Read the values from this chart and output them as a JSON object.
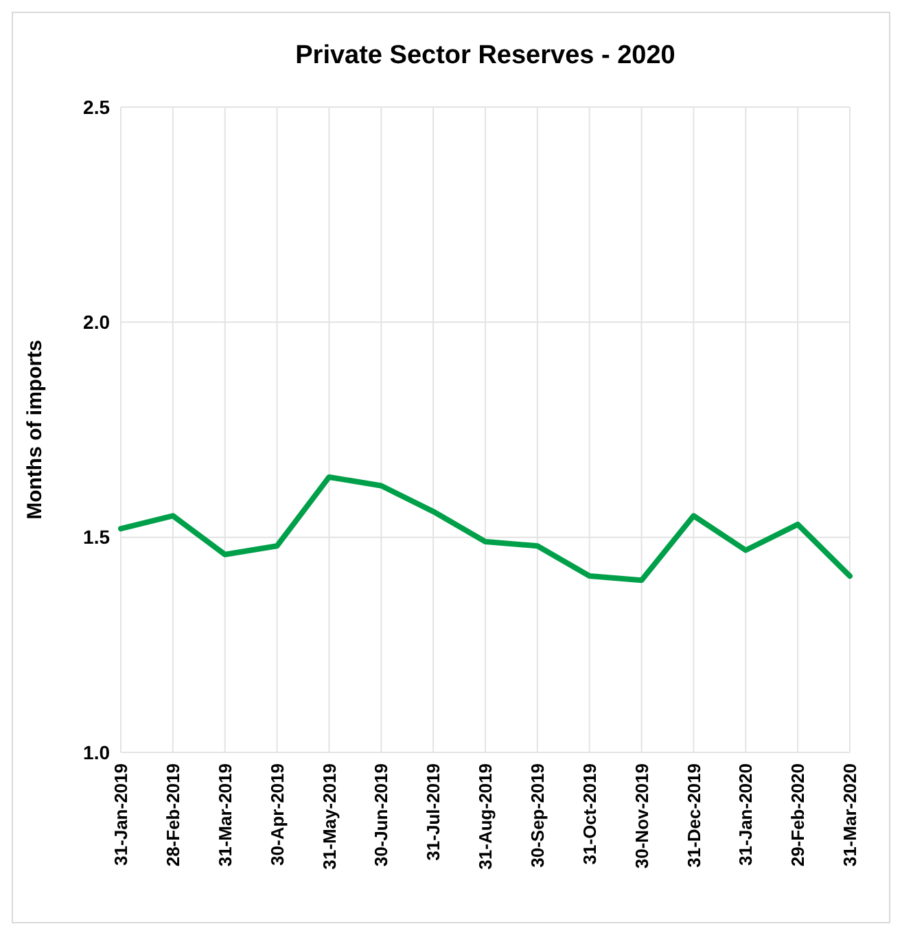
{
  "chart_data": {
    "type": "line",
    "title": "Private Sector Reserves - 2020",
    "ylabel": "Months of imports",
    "categories": [
      "31-Jan-2019",
      "28-Feb-2019",
      "31-Mar-2019",
      "30-Apr-2019",
      "31-May-2019",
      "30-Jun-2019",
      "31-Jul-2019",
      "31-Aug-2019",
      "30-Sep-2019",
      "31-Oct-2019",
      "30-Nov-2019",
      "31-Dec-2019",
      "31-Jan-2020",
      "29-Feb-2020",
      "31-Mar-2020"
    ],
    "series": [
      {
        "color": "#00a04a",
        "values": [
          1.52,
          1.55,
          1.46,
          1.48,
          1.64,
          1.62,
          1.56,
          1.49,
          1.48,
          1.41,
          1.4,
          1.55,
          1.47,
          1.53,
          1.41
        ]
      }
    ],
    "ylim": [
      1.0,
      2.5
    ],
    "yticks": [
      {
        "value": 1.0,
        "label": "1.0"
      },
      {
        "value": 1.5,
        "label": "1.5"
      },
      {
        "value": 2.0,
        "label": "2.0"
      },
      {
        "value": 2.5,
        "label": "2.5"
      }
    ],
    "grid": true,
    "marker": "none",
    "line_style": "solid"
  }
}
